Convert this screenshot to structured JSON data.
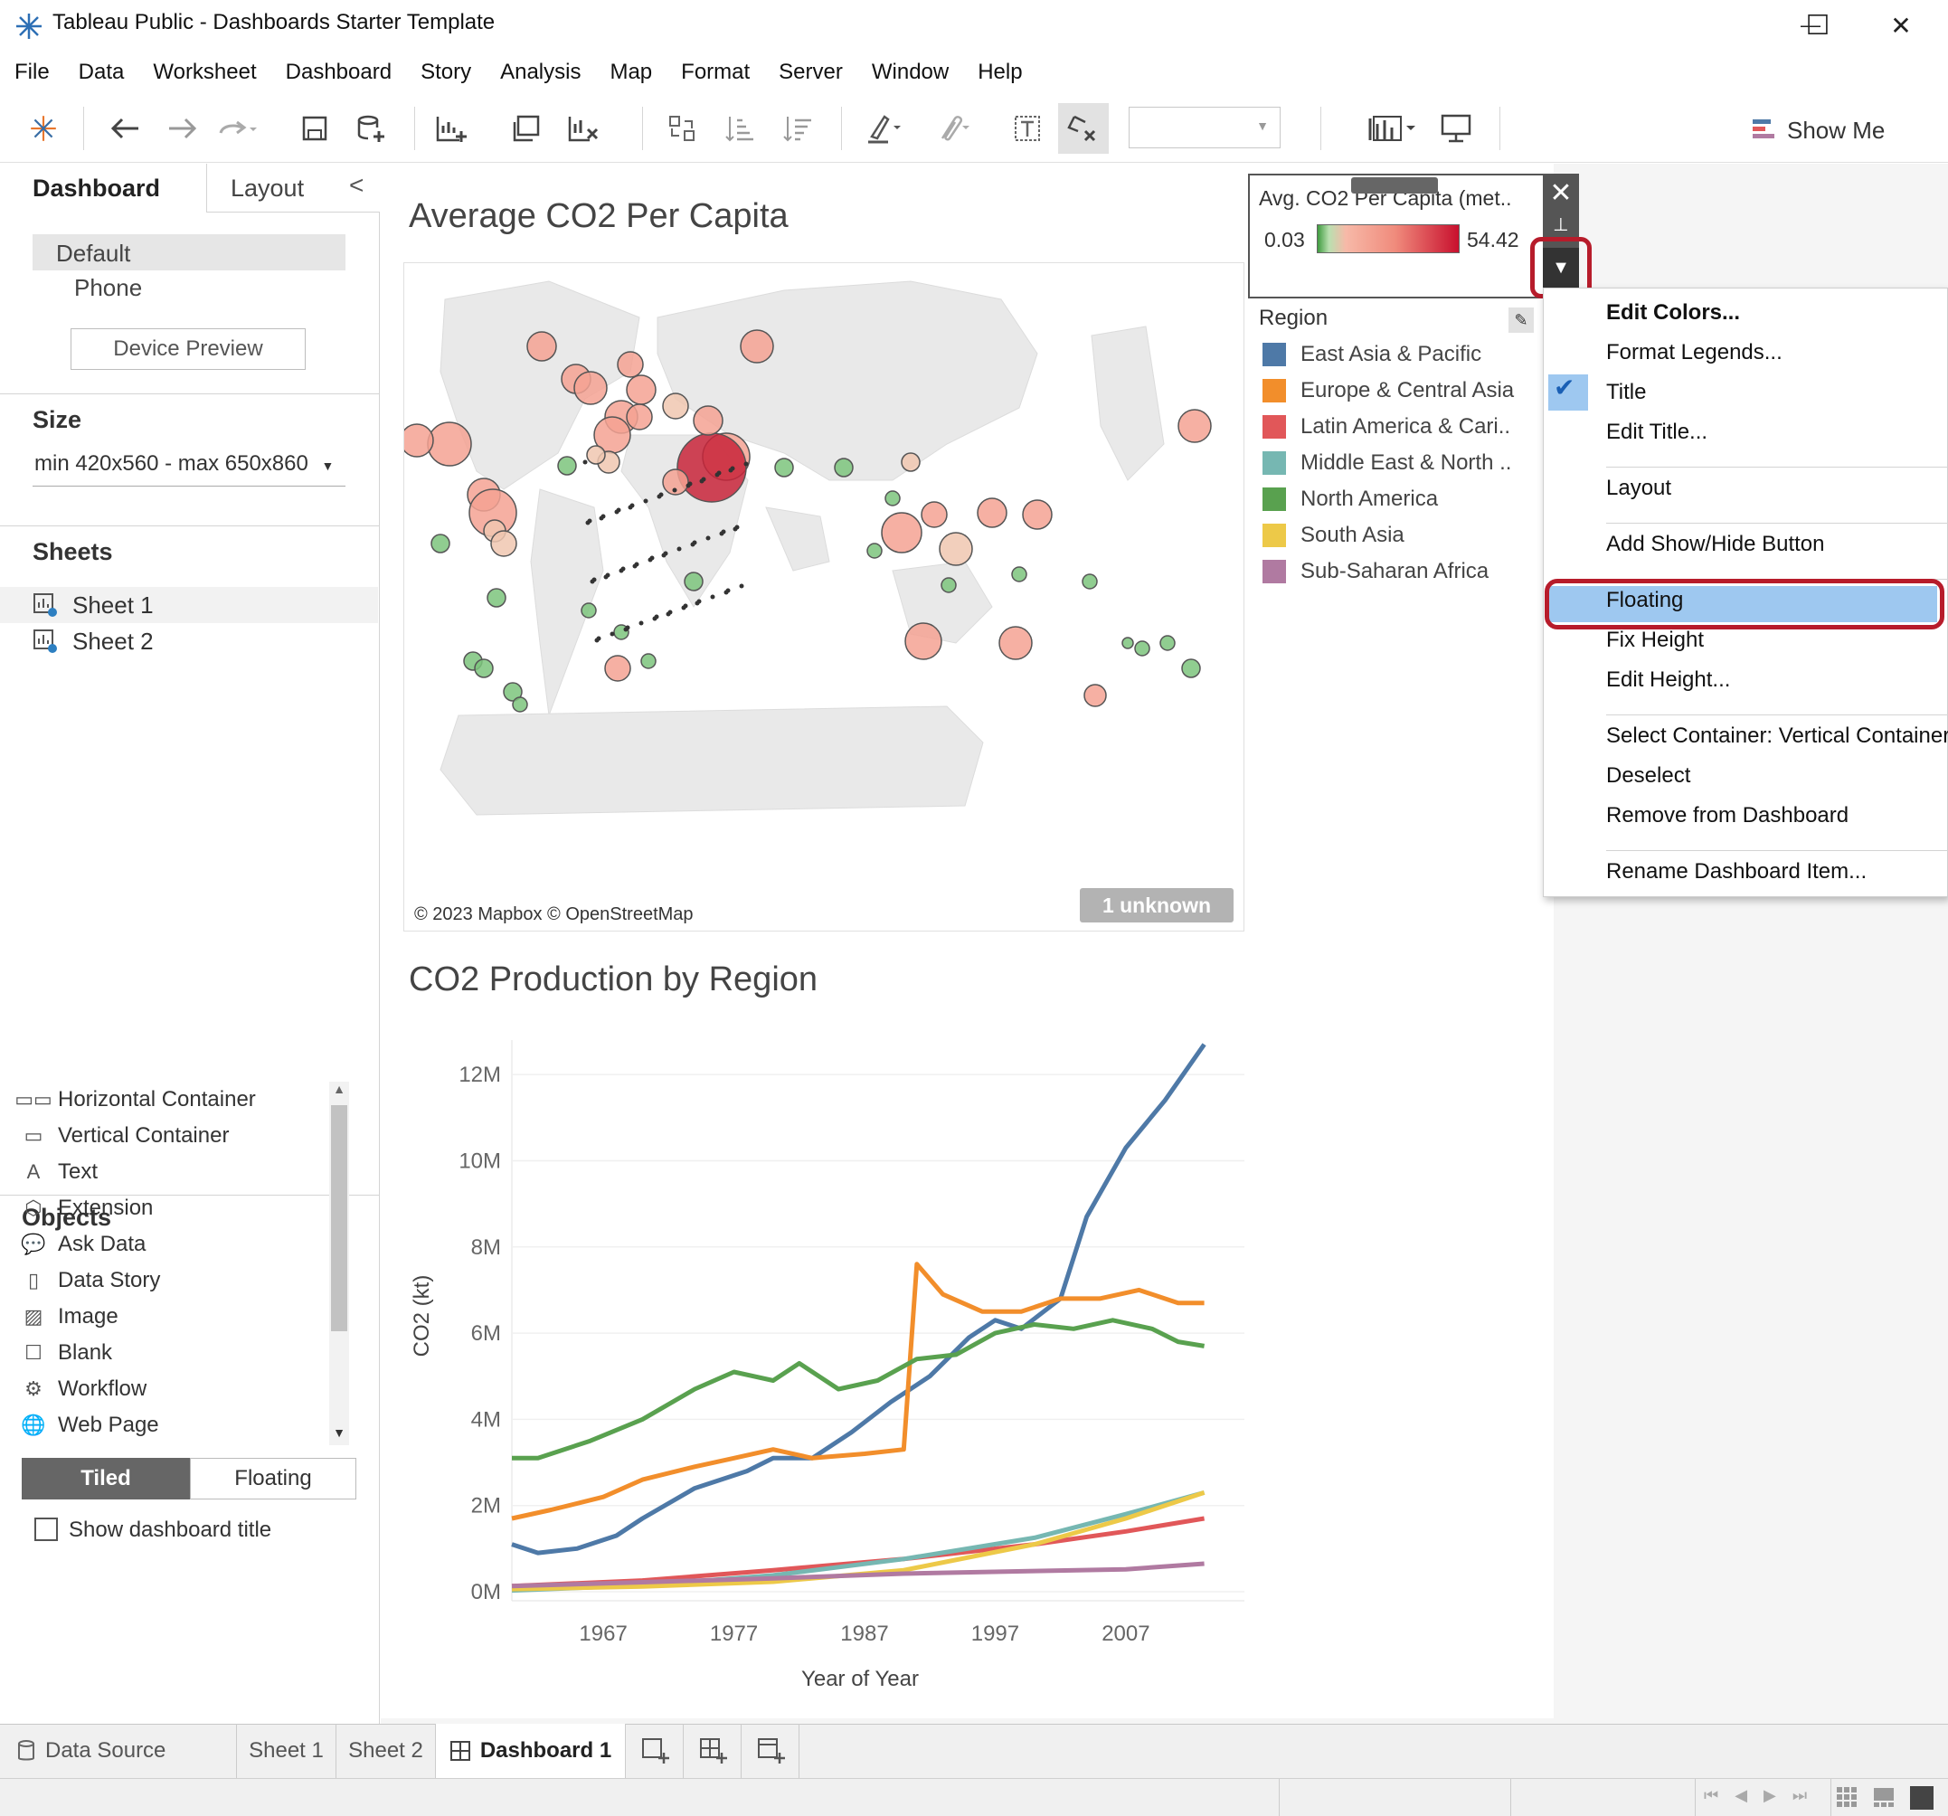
{
  "window": {
    "title": "Tableau Public - Dashboards Starter Template",
    "minimize_glyph": "—",
    "maximize_glyph": "☐",
    "close_glyph": "✕"
  },
  "menu": [
    "File",
    "Data",
    "Worksheet",
    "Dashboard",
    "Story",
    "Analysis",
    "Map",
    "Format",
    "Server",
    "Window",
    "Help"
  ],
  "toolbar": {
    "show_me": "Show Me"
  },
  "left_pane": {
    "tabs": {
      "dashboard": "Dashboard",
      "layout": "Layout"
    },
    "collapse_glyph": "<",
    "device": {
      "default": "Default",
      "phone": "Phone",
      "preview_button": "Device Preview"
    },
    "size": {
      "header": "Size",
      "value": "min 420x560 - max 650x860"
    },
    "sheets": {
      "header": "Sheets",
      "items": [
        "Sheet 1",
        "Sheet 2"
      ]
    },
    "objects": {
      "header": "Objects",
      "items": [
        {
          "label": "Horizontal Container",
          "icon": "▭▭"
        },
        {
          "label": "Vertical Container",
          "icon": "▭"
        },
        {
          "label": "Text",
          "icon": "A"
        },
        {
          "label": "Extension",
          "icon": "⬡"
        },
        {
          "label": "Ask Data",
          "icon": "💬"
        },
        {
          "label": "Data Story",
          "icon": "▯"
        },
        {
          "label": "Image",
          "icon": "▨"
        },
        {
          "label": "Blank",
          "icon": "☐"
        },
        {
          "label": "Workflow",
          "icon": "⚙"
        },
        {
          "label": "Web Page",
          "icon": "🌐"
        }
      ]
    },
    "layout_mode": {
      "tiled": "Tiled",
      "floating": "Floating"
    },
    "show_title": "Show dashboard title"
  },
  "dashboard": {
    "map_title": "Average CO2 Per Capita",
    "map_credit": "© 2023 Mapbox © OpenStreetMap",
    "unknown_badge": "1 unknown",
    "line_title": "CO2 Production by Region"
  },
  "legend": {
    "color_title": "Avg. CO2 Per Capita (met..",
    "min": "0.03",
    "max": "54.42",
    "close_glyph": "✕",
    "pin_glyph": "⊥",
    "menu_glyph": "▼",
    "region_title": "Region",
    "regions": [
      {
        "name": "East Asia & Pacific",
        "color": "#4e79a7"
      },
      {
        "name": "Europe & Central Asia",
        "color": "#f28e2b"
      },
      {
        "name": "Latin America & Cari..",
        "color": "#e15759"
      },
      {
        "name": "Middle East & North ..",
        "color": "#76b7b2"
      },
      {
        "name": "North America",
        "color": "#59a14f"
      },
      {
        "name": "South Asia",
        "color": "#edc948"
      },
      {
        "name": "Sub-Saharan Africa",
        "color": "#b07aa1"
      }
    ]
  },
  "context_menu": {
    "items": [
      "Edit Colors...",
      "Format Legends...",
      "Title",
      "Edit Title...",
      "Layout",
      "Add Show/Hide Button",
      "Floating",
      "Fix Height",
      "Edit Height...",
      "Select Container: Vertical Container",
      "Deselect",
      "Remove from Dashboard",
      "Rename Dashboard Item..."
    ],
    "checked": "Title",
    "highlighted": "Floating",
    "check_glyph": "✔"
  },
  "bottom_tabs": {
    "data_source": "Data Source",
    "sheet1": "Sheet 1",
    "sheet2": "Sheet 2",
    "dashboard1": "Dashboard 1"
  },
  "chart_data": {
    "type": "line",
    "title": "CO2 Production by Region",
    "xlabel": "Year of Year",
    "ylabel": "CO2 (kt)",
    "xlim": [
      1960,
      2014
    ],
    "ylim": [
      0,
      12800000
    ],
    "x_ticks": [
      1967,
      1977,
      1987,
      1997,
      2007
    ],
    "y_ticks": [
      {
        "v": 0,
        "label": "0M"
      },
      {
        "v": 2000000,
        "label": "2M"
      },
      {
        "v": 4000000,
        "label": "4M"
      },
      {
        "v": 6000000,
        "label": "6M"
      },
      {
        "v": 8000000,
        "label": "8M"
      },
      {
        "v": 10000000,
        "label": "10M"
      },
      {
        "v": 12000000,
        "label": "12M"
      }
    ],
    "series": [
      {
        "name": "East Asia & Pacific",
        "color": "#4e79a7",
        "points": [
          [
            1960,
            1100000
          ],
          [
            1962,
            900000
          ],
          [
            1965,
            1000000
          ],
          [
            1968,
            1300000
          ],
          [
            1970,
            1700000
          ],
          [
            1974,
            2400000
          ],
          [
            1978,
            2800000
          ],
          [
            1980,
            3100000
          ],
          [
            1983,
            3100000
          ],
          [
            1986,
            3700000
          ],
          [
            1989,
            4400000
          ],
          [
            1992,
            5000000
          ],
          [
            1995,
            5900000
          ],
          [
            1997,
            6300000
          ],
          [
            1999,
            6100000
          ],
          [
            2002,
            6800000
          ],
          [
            2004,
            8700000
          ],
          [
            2007,
            10300000
          ],
          [
            2010,
            11400000
          ],
          [
            2013,
            12700000
          ]
        ]
      },
      {
        "name": "Europe & Central Asia",
        "color": "#f28e2b",
        "points": [
          [
            1960,
            1700000
          ],
          [
            1963,
            1900000
          ],
          [
            1967,
            2200000
          ],
          [
            1970,
            2600000
          ],
          [
            1974,
            2900000
          ],
          [
            1977,
            3100000
          ],
          [
            1980,
            3300000
          ],
          [
            1983,
            3100000
          ],
          [
            1987,
            3200000
          ],
          [
            1990,
            3300000
          ],
          [
            1991,
            7600000
          ],
          [
            1993,
            6900000
          ],
          [
            1996,
            6500000
          ],
          [
            1999,
            6500000
          ],
          [
            2002,
            6800000
          ],
          [
            2005,
            6800000
          ],
          [
            2008,
            7000000
          ],
          [
            2011,
            6700000
          ],
          [
            2013,
            6700000
          ]
        ]
      },
      {
        "name": "Latin America & Caribbean",
        "color": "#e15759",
        "points": [
          [
            1960,
            130000
          ],
          [
            1970,
            260000
          ],
          [
            1980,
            500000
          ],
          [
            1990,
            760000
          ],
          [
            2000,
            1100000
          ],
          [
            2007,
            1400000
          ],
          [
            2013,
            1700000
          ]
        ]
      },
      {
        "name": "Middle East & North Africa",
        "color": "#76b7b2",
        "points": [
          [
            1960,
            30000
          ],
          [
            1970,
            150000
          ],
          [
            1980,
            380000
          ],
          [
            1990,
            760000
          ],
          [
            2000,
            1250000
          ],
          [
            2007,
            1800000
          ],
          [
            2013,
            2300000
          ]
        ]
      },
      {
        "name": "North America",
        "color": "#59a14f",
        "points": [
          [
            1960,
            3100000
          ],
          [
            1962,
            3100000
          ],
          [
            1966,
            3500000
          ],
          [
            1970,
            4000000
          ],
          [
            1974,
            4700000
          ],
          [
            1977,
            5100000
          ],
          [
            1980,
            4900000
          ],
          [
            1982,
            5300000
          ],
          [
            1985,
            4700000
          ],
          [
            1988,
            4900000
          ],
          [
            1991,
            5400000
          ],
          [
            1994,
            5500000
          ],
          [
            1997,
            6000000
          ],
          [
            2000,
            6200000
          ],
          [
            2003,
            6100000
          ],
          [
            2006,
            6300000
          ],
          [
            2009,
            6100000
          ],
          [
            2011,
            5800000
          ],
          [
            2013,
            5700000
          ]
        ]
      },
      {
        "name": "South Asia",
        "color": "#edc948",
        "points": [
          [
            1960,
            60000
          ],
          [
            1970,
            120000
          ],
          [
            1980,
            230000
          ],
          [
            1990,
            500000
          ],
          [
            2000,
            1100000
          ],
          [
            2007,
            1700000
          ],
          [
            2013,
            2300000
          ]
        ]
      },
      {
        "name": "Sub-Saharan Africa",
        "color": "#b07aa1",
        "points": [
          [
            1960,
            130000
          ],
          [
            1970,
            220000
          ],
          [
            1980,
            310000
          ],
          [
            1990,
            420000
          ],
          [
            2000,
            480000
          ],
          [
            2007,
            520000
          ],
          [
            2013,
            650000
          ]
        ]
      }
    ]
  }
}
